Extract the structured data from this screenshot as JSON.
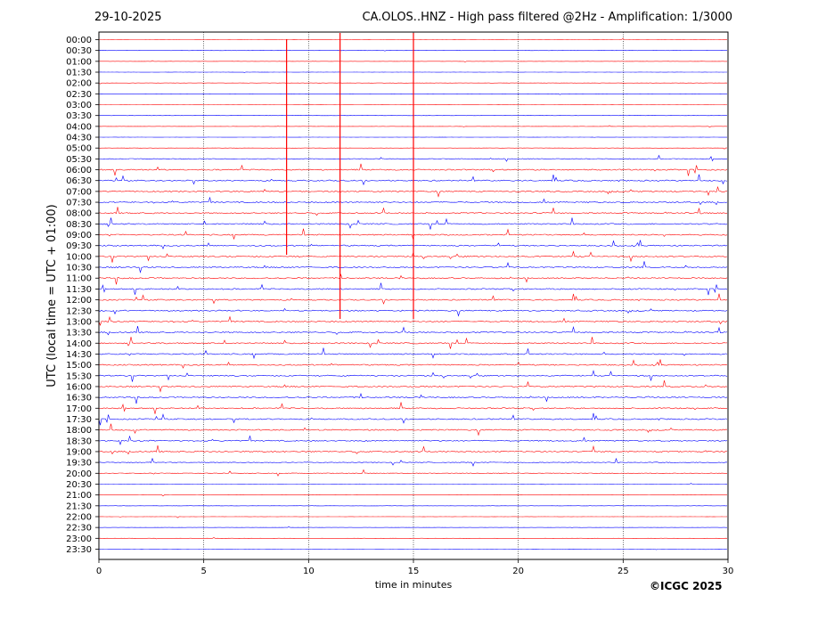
{
  "header": {
    "date": "29-10-2025",
    "title": "CA.OLOS..HNZ - High pass filtered @2Hz - Amplification: 1/3000"
  },
  "credit": "©ICGC 2025",
  "chart_data": {
    "type": "line",
    "title": "CA.OLOS..HNZ - High pass filtered @2Hz - Amplification: 1/3000",
    "xlabel": "time in minutes",
    "ylabel": "UTC (local time = UTC + 01:00)",
    "xlim": [
      0,
      30
    ],
    "xticks": [
      0,
      5,
      10,
      15,
      20,
      25,
      30
    ],
    "vertical_gridlines_at": [
      5,
      10,
      15,
      20,
      25
    ],
    "row_labels": [
      "00:00",
      "00:30",
      "01:00",
      "01:30",
      "02:00",
      "02:30",
      "03:00",
      "03:30",
      "04:00",
      "04:30",
      "05:00",
      "05:30",
      "06:00",
      "06:30",
      "07:00",
      "07:30",
      "08:00",
      "08:30",
      "09:00",
      "09:30",
      "10:00",
      "10:30",
      "11:00",
      "11:30",
      "12:00",
      "12:30",
      "13:00",
      "13:30",
      "14:00",
      "14:30",
      "15:00",
      "15:30",
      "16:00",
      "16:30",
      "17:00",
      "17:30",
      "18:00",
      "18:30",
      "19:00",
      "19:30",
      "20:00",
      "20:30",
      "21:00",
      "21:30",
      "22:00",
      "22:30",
      "23:00",
      "23:30"
    ],
    "trace_colors": [
      "#ff0000",
      "#0000ff"
    ],
    "grid": true,
    "legend": "none"
  }
}
